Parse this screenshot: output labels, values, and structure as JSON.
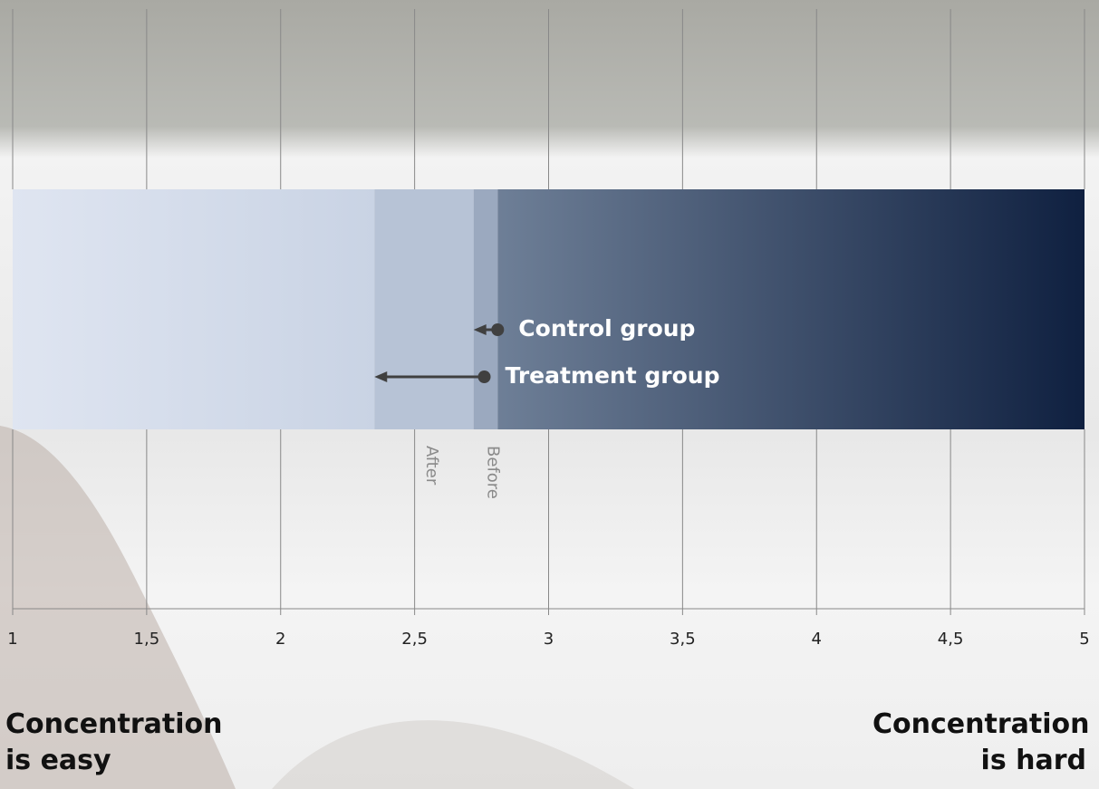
{
  "chart_data": {
    "type": "arrow",
    "categories": [
      "Before",
      "After"
    ],
    "series": [
      {
        "name": "Control group",
        "color": "#404040",
        "values": [
          2.81,
          2.72
        ]
      },
      {
        "name": "Treatment group",
        "color": "#404040",
        "values": [
          2.76,
          2.35
        ]
      }
    ],
    "xlim": [
      1,
      5
    ],
    "xticks": [
      1,
      {
        "value": 1.5,
        "label": "1,5"
      },
      2,
      {
        "value": 2.5,
        "label": "2,5"
      },
      3,
      {
        "value": 3.5,
        "label": "3,5"
      },
      4,
      {
        "value": 4.5,
        "label": "4,5"
      },
      5
    ],
    "grid": true,
    "left_label": "Concentration is easy",
    "right_label": "Concentration is hard"
  }
}
